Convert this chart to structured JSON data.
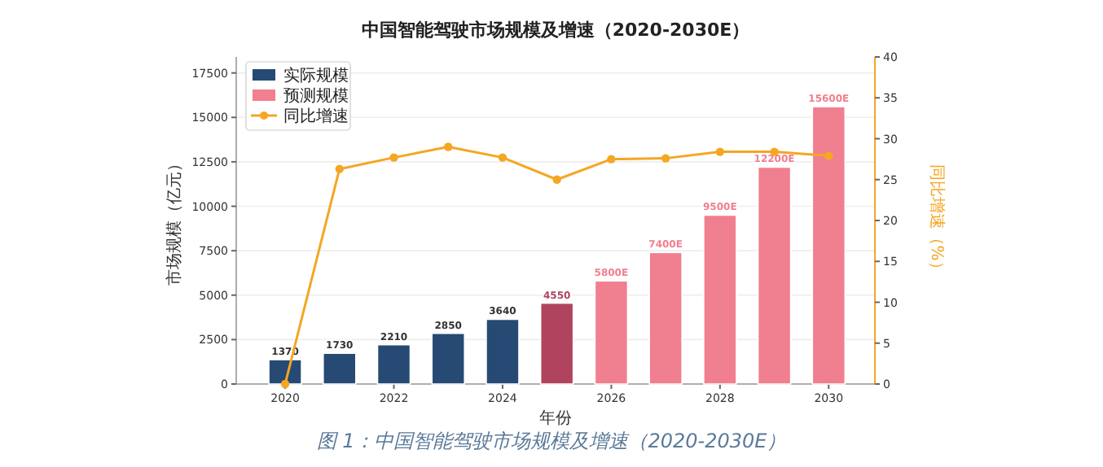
{
  "chart_data": {
    "type": "bar",
    "title": "中国智能驾驶市场规模及增速（2020-2030E）",
    "xlabel": "年份",
    "ylabel": "市场规模（亿元）",
    "y2label": "同比增速（%）",
    "x": [
      2020,
      2021,
      2022,
      2023,
      2024,
      2025,
      2026,
      2027,
      2028,
      2029,
      2030
    ],
    "xlim": [
      2019.1,
      2030.85
    ],
    "xticks": [
      2020,
      2022,
      2024,
      2026,
      2028,
      2030
    ],
    "ylim": [
      0,
      18400
    ],
    "yticks": [
      0,
      2500,
      5000,
      7500,
      10000,
      12500,
      15000,
      17500
    ],
    "y2lim": [
      0,
      40
    ],
    "y2ticks": [
      0,
      5,
      10,
      15,
      20,
      25,
      30,
      35,
      40
    ],
    "grid": "y",
    "legend": "top left",
    "series": [
      {
        "name": "实际规模",
        "color": "#264a73",
        "values": [
          1370,
          1730,
          2210,
          2850,
          3640,
          null,
          null,
          null,
          null,
          null,
          null
        ],
        "value_labels": [
          "1370",
          "1730",
          "2210",
          "2850",
          "3640",
          null,
          null,
          null,
          null,
          null,
          null
        ]
      },
      {
        "name": "预测规模",
        "color": "#f07f8f",
        "colors": [
          null,
          null,
          null,
          null,
          null,
          "#b0445f",
          "#f07f8f",
          "#f07f8f",
          "#f07f8f",
          "#f07f8f",
          "#f07f8f"
        ],
        "values": [
          null,
          null,
          null,
          null,
          null,
          4550,
          5800,
          7400,
          9500,
          12200,
          15600
        ],
        "value_labels": [
          null,
          null,
          null,
          null,
          null,
          "4550",
          "5800E",
          "7400E",
          "9500E",
          "12200E",
          "15600E"
        ]
      },
      {
        "name": "同比增速",
        "type": "line",
        "axis": "y2",
        "color": "#f5a623",
        "marker": "circle",
        "values": [
          0,
          26.3,
          27.7,
          29.0,
          27.7,
          25.0,
          27.5,
          27.6,
          28.4,
          28.4,
          27.9
        ]
      }
    ],
    "annotations": [
      "图 1：中国智能驾驶市场规模及增速（2020-2030E）"
    ]
  }
}
